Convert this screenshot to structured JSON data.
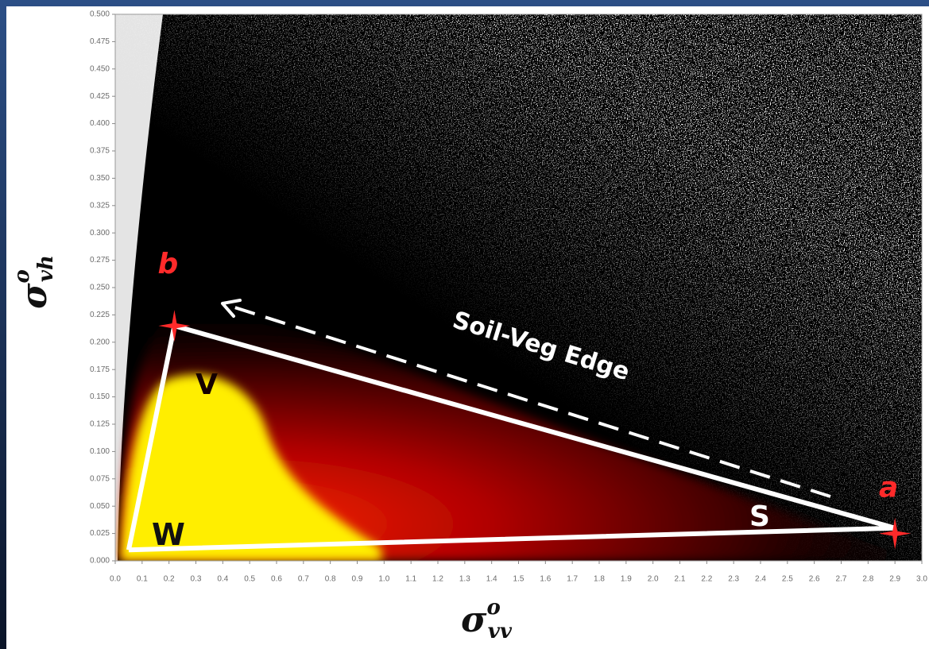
{
  "chart_data": {
    "type": "scatter",
    "x_label": {
      "symbol": "σ",
      "sup": "o",
      "sub": "vv"
    },
    "y_label": {
      "symbol": "σ",
      "sup": "o",
      "sub": "vh"
    },
    "xlim": [
      0,
      3
    ],
    "ylim": [
      0,
      0.5
    ],
    "xticks": [
      {
        "value": 0,
        "label": "0.0"
      },
      0.1,
      0.2,
      0.3,
      0.4,
      0.5,
      0.6,
      0.7,
      0.8,
      0.9,
      {
        "value": 1,
        "label": "1.0"
      },
      1.1,
      1.2,
      1.3,
      1.4,
      1.5,
      1.6,
      1.7,
      1.8,
      1.9,
      {
        "value": 2,
        "label": "2.0"
      },
      2.1,
      2.2,
      2.3,
      2.4,
      2.5,
      2.6,
      2.7,
      2.8,
      2.9,
      {
        "value": 3,
        "label": "3.0"
      }
    ],
    "yticks": [
      {
        "value": 0,
        "label": "0.000"
      },
      {
        "value": 0.025,
        "label": "0.025"
      },
      {
        "value": 0.05,
        "label": "0.050"
      },
      {
        "value": 0.075,
        "label": "0.075"
      },
      {
        "value": 0.1,
        "label": "0.100"
      },
      {
        "value": 0.125,
        "label": "0.125"
      },
      {
        "value": 0.15,
        "label": "0.150"
      },
      {
        "value": 0.175,
        "label": "0.175"
      },
      {
        "value": 0.2,
        "label": "0.200"
      },
      {
        "value": 0.225,
        "label": "0.225"
      },
      {
        "value": 0.25,
        "label": "0.250"
      },
      {
        "value": 0.275,
        "label": "0.275"
      },
      {
        "value": 0.3,
        "label": "0.300"
      },
      {
        "value": 0.325,
        "label": "0.325"
      },
      {
        "value": 0.35,
        "label": "0.350"
      },
      {
        "value": 0.375,
        "label": "0.375"
      },
      {
        "value": 0.4,
        "label": "0.400"
      },
      {
        "value": 0.425,
        "label": "0.425"
      },
      {
        "value": 0.45,
        "label": "0.450"
      },
      {
        "value": 0.475,
        "label": "0.475"
      },
      {
        "value": 0.5,
        "label": "0.500"
      }
    ],
    "endmembers": {
      "names": [
        "b",
        "a"
      ],
      "x": [
        0.22,
        2.9
      ],
      "y": [
        0.215,
        0.025
      ],
      "color": "#ff2a2a"
    },
    "triangle": {
      "x": [
        0.05,
        0.22,
        2.9,
        0.05
      ],
      "y": [
        0.01,
        0.215,
        0.03,
        0.01
      ],
      "color": "#ffffff"
    },
    "annotations": [
      {
        "text": "V"
      },
      {
        "text": "W"
      },
      {
        "text": "S"
      },
      {
        "text": "Soil-Veg Edge"
      }
    ]
  }
}
